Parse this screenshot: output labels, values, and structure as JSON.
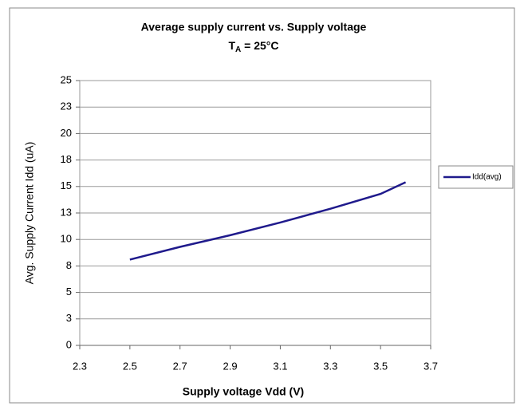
{
  "chart_data": {
    "type": "line",
    "title": "Average supply current  vs. Supply voltage",
    "subtitle": {
      "symbol": "T",
      "subscript": "A",
      "rest": " = 25°C"
    },
    "x_label": "Supply voltage Vdd (V)",
    "y_label": "Avg. Supply Current Idd (uA)",
    "x": [
      2.5,
      2.7,
      2.9,
      3.1,
      3.3,
      3.5,
      3.6
    ],
    "series": [
      {
        "name": "Idd(avg)",
        "color": "#1f1a8c",
        "values": [
          8.1,
          9.3,
          10.4,
          11.6,
          12.9,
          14.3,
          15.4
        ]
      }
    ],
    "xlim": [
      2.3,
      3.7
    ],
    "xticks": [
      2.3,
      2.5,
      2.7,
      2.9,
      3.1,
      3.3,
      3.5,
      3.7
    ],
    "ylim": [
      0,
      25
    ],
    "yticks": [
      0,
      {
        "value": 2.5,
        "label": "3"
      },
      5,
      {
        "value": 7.5,
        "label": "8"
      },
      10,
      {
        "value": 12.5,
        "label": "13"
      },
      15,
      {
        "value": 17.5,
        "label": "18"
      },
      20,
      {
        "value": 22.5,
        "label": "23"
      },
      25
    ],
    "grid": true,
    "legend": "right"
  }
}
